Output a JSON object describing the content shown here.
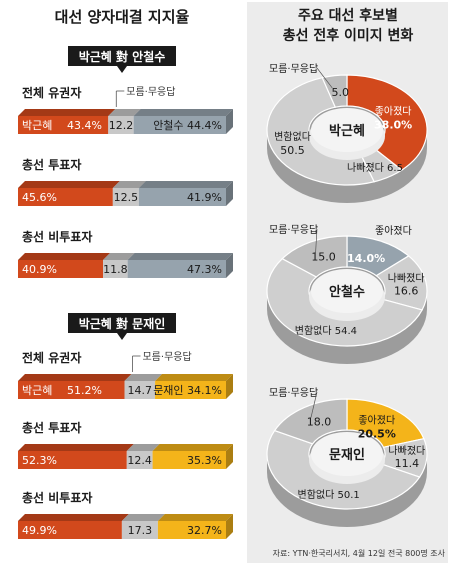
{
  "left_title": "대선 양자대결 지지율",
  "right_title_1": "주요 대선 후보별",
  "right_title_2": "총선 전후 이미지 변화",
  "source": "자료: YTN·한국리서치, 4월 12일 전국 800명 조사",
  "colors": {
    "park": "#d2491c",
    "ahn": "#96a3ad",
    "moon": "#f4b41a",
    "neutral": "#c8c8c8",
    "dark": "#1a1a1a"
  },
  "chart_data": [
    {
      "type": "bar",
      "stacked": true,
      "title": "박근혜 對 안철수",
      "legend_note": "모름·무응답",
      "categories": [
        "전체 유권자",
        "총선 투표자",
        "총선 비투표자"
      ],
      "series": [
        {
          "name": "박근혜",
          "values": [
            43.4,
            45.6,
            40.9
          ]
        },
        {
          "name": "",
          "values": [
            12.2,
            12.5,
            11.8
          ]
        },
        {
          "name": "안철수",
          "values": [
            44.4,
            41.9,
            47.3
          ]
        }
      ]
    },
    {
      "type": "bar",
      "stacked": true,
      "title": "박근혜 對 문재인",
      "legend_note": "모름·무응답",
      "categories": [
        "전체 유권자",
        "총선 투표자",
        "총선 비투표자"
      ],
      "series": [
        {
          "name": "박근혜",
          "values": [
            51.2,
            52.3,
            49.9
          ]
        },
        {
          "name": "",
          "values": [
            14.7,
            12.4,
            17.3
          ]
        },
        {
          "name": "문재인",
          "values": [
            34.1,
            35.3,
            32.7
          ]
        }
      ]
    },
    {
      "type": "pie",
      "center_label": "박근혜",
      "slices": [
        {
          "label": "좋아졌다",
          "value": 38.0
        },
        {
          "label": "나빠졌다",
          "value": 6.5
        },
        {
          "label": "변함없다",
          "value": 50.5
        },
        {
          "label": "모름·무응답",
          "value": 5.0
        }
      ]
    },
    {
      "type": "pie",
      "center_label": "안철수",
      "slices": [
        {
          "label": "좋아졌다",
          "value": 14.0
        },
        {
          "label": "나빠졌다",
          "value": 16.6
        },
        {
          "label": "변함없다",
          "value": 54.4
        },
        {
          "label": "모름·무응답",
          "value": 15.0
        }
      ]
    },
    {
      "type": "pie",
      "center_label": "문재인",
      "slices": [
        {
          "label": "좋아졌다",
          "value": 20.5
        },
        {
          "label": "나빠졌다",
          "value": 11.4
        },
        {
          "label": "변함없다",
          "value": 50.1
        },
        {
          "label": "모름·무응답",
          "value": 18.0
        }
      ]
    }
  ]
}
